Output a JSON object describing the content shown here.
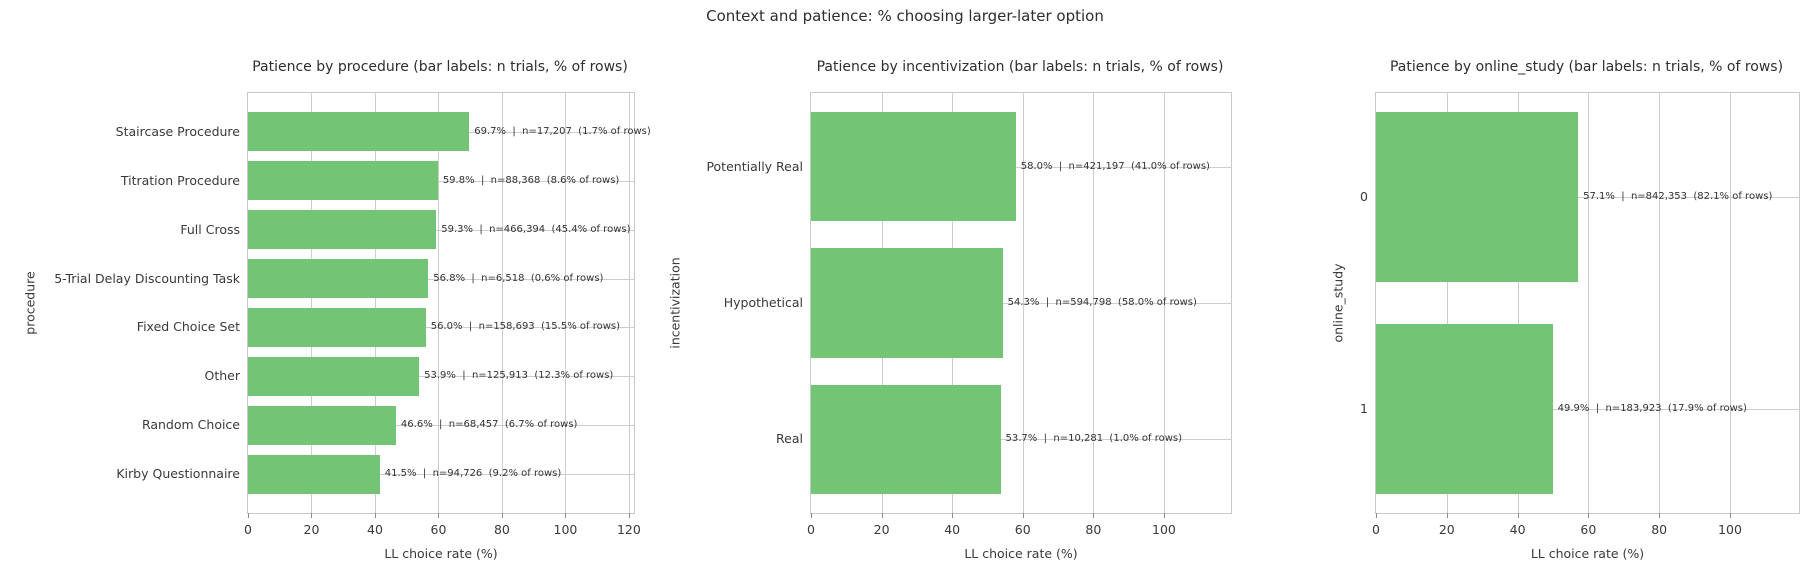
{
  "suptitle": "Context and patience: % choosing larger-later option",
  "colors": {
    "bar": "#74c476",
    "grid": "#cdcdcd",
    "spine": "#c9c9c9",
    "title_text": "#2e2e2e",
    "tick_text": "#3a3a3a",
    "bar_label_text": "#333333"
  },
  "chart_data": [
    {
      "type": "bar",
      "orientation": "horizontal",
      "title": "Patience by procedure (bar labels: n trials, % of rows)",
      "ylabel": "procedure",
      "xlabel": "LL choice rate (%)",
      "grid": true,
      "legend": false,
      "xticks": [
        0,
        20,
        40,
        60,
        80,
        100,
        120
      ],
      "xlim": [
        0,
        121.6
      ],
      "categories": [
        "Staircase Procedure",
        "Titration Procedure",
        "Full Cross",
        "5-Trial Delay Discounting Task",
        "Fixed Choice Set",
        "Other",
        "Random Choice",
        "Kirby Questionnaire"
      ],
      "values": [
        69.7,
        59.8,
        59.3,
        56.8,
        56.0,
        53.9,
        46.6,
        41.5
      ],
      "n_trials": [
        17207,
        88368,
        466394,
        6518,
        158693,
        125913,
        68457,
        94726
      ],
      "pct_of_rows": [
        1.7,
        8.6,
        45.4,
        0.6,
        15.5,
        12.3,
        6.7,
        9.2
      ],
      "bar_labels": [
        "69.7%  |  n=17,207  (1.7% of rows)",
        "59.8%  |  n=88,368  (8.6% of rows)",
        "59.3%  |  n=466,394  (45.4% of rows)",
        "56.8%  |  n=6,518  (0.6% of rows)",
        "56.0%  |  n=158,693  (15.5% of rows)",
        "53.9%  |  n=125,913  (12.3% of rows)",
        "46.6%  |  n=68,457  (6.7% of rows)",
        "41.5%  |  n=94,726  (9.2% of rows)"
      ]
    },
    {
      "type": "bar",
      "orientation": "horizontal",
      "title": "Patience by incentivization (bar labels: n trials, % of rows)",
      "ylabel": "incentivization",
      "xlabel": "LL choice rate (%)",
      "grid": true,
      "legend": false,
      "xticks": [
        0,
        20,
        40,
        60,
        80,
        100
      ],
      "xlim": [
        0,
        119
      ],
      "categories": [
        "Potentially Real",
        "Hypothetical",
        "Real"
      ],
      "values": [
        58.0,
        54.3,
        53.7
      ],
      "n_trials": [
        421197,
        594798,
        10281
      ],
      "pct_of_rows": [
        41.0,
        58.0,
        1.0
      ],
      "bar_labels": [
        "58.0%  |  n=421,197  (41.0% of rows)",
        "54.3%  |  n=594,798  (58.0% of rows)",
        "53.7%  |  n=10,281  (1.0% of rows)"
      ]
    },
    {
      "type": "bar",
      "orientation": "horizontal",
      "title": "Patience by online_study (bar labels: n trials, % of rows)",
      "ylabel": "online_study",
      "xlabel": "LL choice rate (%)",
      "grid": true,
      "legend": false,
      "xticks": [
        0,
        20,
        40,
        60,
        80,
        100
      ],
      "xlim": [
        0,
        119.5
      ],
      "categories": [
        "0",
        "1"
      ],
      "values": [
        57.1,
        49.9
      ],
      "n_trials": [
        842353,
        183923
      ],
      "pct_of_rows": [
        82.1,
        17.9
      ],
      "bar_labels": [
        "57.1%  |  n=842,353  (82.1% of rows)",
        "49.9%  |  n=183,923  (17.9% of rows)"
      ]
    }
  ]
}
